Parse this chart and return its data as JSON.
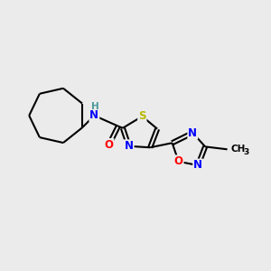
{
  "background_color": "#ebebeb",
  "bond_color": "#000000",
  "atom_colors": {
    "S": "#b8b800",
    "N": "#0000ff",
    "O": "#ff0000",
    "C": "#000000",
    "H": "#4a9a9a"
  },
  "figsize": [
    3.0,
    3.0
  ],
  "dpi": 100
}
